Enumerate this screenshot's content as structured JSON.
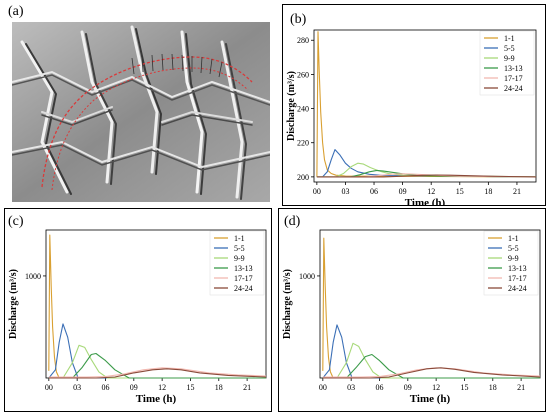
{
  "panels": [
    {
      "id": "a",
      "label": "(a)"
    },
    {
      "id": "b",
      "label": "(b)"
    },
    {
      "id": "c",
      "label": "(c)"
    },
    {
      "id": "d",
      "label": "(d)"
    }
  ],
  "colors": {
    "1-1": "#d9a032",
    "5-5": "#3b6fb6",
    "9-9": "#a8d97a",
    "13-13": "#3c9b4a",
    "17-17": "#f2b8b0",
    "24-24": "#8a4a3a"
  },
  "chart_data": [
    {
      "panel": "b",
      "type": "line",
      "xlabel": "Time (h)",
      "ylabel": "Discharge (m³/s)",
      "xlim": [
        -0.3,
        23
      ],
      "ylim": [
        197,
        286
      ],
      "xticks": [
        "00",
        "03",
        "06",
        "09",
        "12",
        "15",
        "18",
        "21"
      ],
      "xtick_values": [
        0,
        3,
        6,
        9,
        12,
        15,
        18,
        21
      ],
      "yticks": [
        "200",
        "220",
        "240",
        "260",
        "280"
      ],
      "ytick_values": [
        200,
        220,
        240,
        260,
        280
      ],
      "legend": "top-right",
      "series": [
        {
          "name": "1-1",
          "x": [
            0,
            0.12,
            0.25,
            0.4,
            0.6,
            0.8,
            1.1,
            1.5,
            2,
            3,
            23
          ],
          "y": [
            200,
            285,
            262,
            238,
            220,
            210,
            204,
            202,
            201,
            200.5,
            200
          ]
        },
        {
          "name": "5-5",
          "x": [
            0,
            0.6,
            1.1,
            1.5,
            1.9,
            2.4,
            3,
            3.6,
            4.3,
            5.5,
            7,
            23
          ],
          "y": [
            200,
            200,
            203,
            210,
            216,
            213,
            208,
            205,
            203,
            201.5,
            200.8,
            200
          ]
        },
        {
          "name": "9-9",
          "x": [
            0,
            2,
            2.8,
            3.6,
            4.3,
            4.9,
            5.6,
            6.5,
            7.5,
            9,
            23
          ],
          "y": [
            200,
            200,
            202,
            206,
            208,
            207.5,
            205.5,
            203.5,
            202,
            201,
            200
          ]
        },
        {
          "name": "13-13",
          "x": [
            0,
            3.5,
            4.5,
            5.5,
            6.3,
            7,
            8,
            9,
            10.5,
            12,
            23
          ],
          "y": [
            200,
            200,
            201.2,
            203,
            203.8,
            203.4,
            202.6,
            201.8,
            201,
            200.6,
            200
          ]
        },
        {
          "name": "17-17",
          "x": [
            0,
            5,
            6.5,
            8,
            9,
            10,
            11.5,
            13,
            15,
            23
          ],
          "y": [
            200,
            200,
            200.8,
            201.6,
            201.8,
            201.6,
            201.2,
            200.8,
            200.4,
            200
          ]
        },
        {
          "name": "24-24",
          "x": [
            0,
            7,
            9,
            11,
            12.5,
            14,
            16,
            18,
            23
          ],
          "y": [
            200,
            200,
            200.4,
            200.9,
            201.1,
            201,
            200.7,
            200.4,
            200
          ]
        }
      ]
    },
    {
      "panel": "c",
      "type": "line",
      "xlabel": "Time (h)",
      "ylabel": "Discharge (m³/s)",
      "xlim": [
        -0.3,
        23
      ],
      "ylim": [
        0,
        1450
      ],
      "xticks": [
        "00",
        "03",
        "06",
        "09",
        "12",
        "15",
        "18",
        "21"
      ],
      "xtick_values": [
        0,
        3,
        6,
        9,
        12,
        15,
        18,
        21
      ],
      "yticks": [
        "1000"
      ],
      "ytick_values": [
        1000
      ],
      "legend": "top-right",
      "series": [
        {
          "name": "1-1",
          "x": [
            0,
            0.1,
            0.25,
            0.4,
            0.6,
            0.8,
            1.1,
            23
          ],
          "y": [
            70,
            1400,
            900,
            500,
            200,
            60,
            0,
            0
          ]
        },
        {
          "name": "5-5",
          "x": [
            0,
            0.7,
            1.1,
            1.5,
            2,
            2.5,
            3.1,
            23
          ],
          "y": [
            0,
            80,
            350,
            530,
            400,
            150,
            0,
            0
          ]
        },
        {
          "name": "9-9",
          "x": [
            0,
            1.5,
            2.5,
            3.2,
            3.8,
            4.5,
            5.3,
            6.2,
            23
          ],
          "y": [
            0,
            0,
            150,
            320,
            300,
            180,
            60,
            0,
            0
          ]
        },
        {
          "name": "13-13",
          "x": [
            0,
            2.5,
            3.5,
            4.5,
            5,
            6,
            7,
            8.5,
            23
          ],
          "y": [
            0,
            0,
            100,
            230,
            240,
            170,
            80,
            0,
            0
          ]
        },
        {
          "name": "17-17",
          "x": [
            0,
            4,
            6,
            8,
            10,
            12,
            14,
            17,
            20,
            23
          ],
          "y": [
            10,
            10,
            15,
            40,
            80,
            100,
            90,
            50,
            30,
            20
          ]
        },
        {
          "name": "24-24",
          "x": [
            0,
            5,
            7,
            9,
            11,
            12.5,
            14,
            16,
            19,
            23
          ],
          "y": [
            0,
            0,
            10,
            50,
            80,
            90,
            80,
            50,
            25,
            10
          ]
        }
      ]
    },
    {
      "panel": "d",
      "type": "line",
      "xlabel": "Time (h)",
      "ylabel": "Discharge (m³/s)",
      "xlim": [
        -0.3,
        23
      ],
      "ylim": [
        0,
        1450
      ],
      "xticks": [
        "00",
        "03",
        "06",
        "09",
        "12",
        "15",
        "18",
        "21"
      ],
      "xtick_values": [
        0,
        3,
        6,
        9,
        12,
        15,
        18,
        21
      ],
      "yticks": [
        "1000"
      ],
      "ytick_values": [
        1000
      ],
      "legend": "top-right",
      "series": [
        {
          "name": "1-1",
          "x": [
            0,
            0.1,
            0.25,
            0.4,
            0.6,
            0.8,
            1.1,
            23
          ],
          "y": [
            70,
            1370,
            900,
            500,
            200,
            60,
            0,
            0
          ]
        },
        {
          "name": "5-5",
          "x": [
            0,
            0.7,
            1.1,
            1.5,
            2,
            2.5,
            3.1,
            23
          ],
          "y": [
            0,
            80,
            350,
            520,
            400,
            150,
            0,
            0
          ]
        },
        {
          "name": "9-9",
          "x": [
            0,
            1.5,
            2.5,
            3.2,
            3.8,
            4.5,
            5.3,
            6.2,
            23
          ],
          "y": [
            0,
            0,
            150,
            340,
            310,
            180,
            60,
            0,
            0
          ]
        },
        {
          "name": "13-13",
          "x": [
            0,
            2.5,
            3.5,
            4.5,
            5.2,
            6,
            7,
            8.5,
            23
          ],
          "y": [
            0,
            0,
            100,
            210,
            230,
            170,
            80,
            0,
            0
          ]
        },
        {
          "name": "17-17",
          "x": [
            0,
            4,
            6,
            8,
            10,
            12,
            14,
            17,
            20,
            23
          ],
          "y": [
            10,
            10,
            15,
            40,
            80,
            100,
            90,
            50,
            30,
            20
          ]
        },
        {
          "name": "24-24",
          "x": [
            0,
            5,
            7,
            9,
            11,
            12.5,
            14,
            16,
            19,
            23
          ],
          "y": [
            0,
            0,
            10,
            50,
            90,
            100,
            85,
            55,
            30,
            10
          ]
        }
      ]
    }
  ]
}
